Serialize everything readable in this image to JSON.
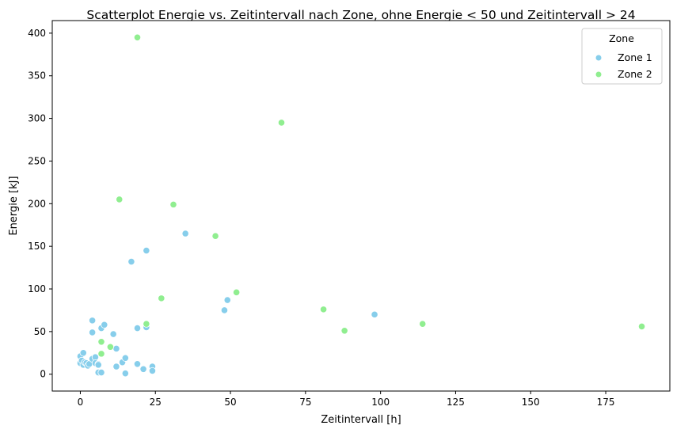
{
  "chart_data": {
    "type": "scatter",
    "title": "Scatterplot Energie vs. Zeitintervall nach Zone, ohne Energie < 50 und Zeitintervall > 24",
    "xlabel": "Zeitintervall [h]",
    "ylabel": "Energie [kJ]",
    "xlim": [
      -9.35,
      196.35
    ],
    "ylim": [
      -19.75,
      414.75
    ],
    "xticks": [
      0,
      25,
      50,
      75,
      100,
      125,
      150,
      175
    ],
    "yticks": [
      0,
      50,
      100,
      150,
      200,
      250,
      300,
      350,
      400
    ],
    "grid": false,
    "legend": {
      "title": "Zone",
      "position": "top-right"
    },
    "series": [
      {
        "name": "Zone 1",
        "color": "#87CEEB",
        "points": [
          [
            0,
            13
          ],
          [
            0,
            21
          ],
          [
            0.5,
            16
          ],
          [
            1,
            11
          ],
          [
            1,
            25
          ],
          [
            1.5,
            14
          ],
          [
            2,
            13
          ],
          [
            2.5,
            10
          ],
          [
            3,
            12
          ],
          [
            4,
            18
          ],
          [
            4,
            63
          ],
          [
            4,
            49
          ],
          [
            5,
            20
          ],
          [
            5,
            13
          ],
          [
            6,
            12
          ],
          [
            6,
            11
          ],
          [
            6,
            2
          ],
          [
            7,
            2
          ],
          [
            7,
            54
          ],
          [
            8,
            58
          ],
          [
            11,
            47
          ],
          [
            12,
            9
          ],
          [
            12,
            30
          ],
          [
            14,
            14
          ],
          [
            15,
            19
          ],
          [
            15,
            1
          ],
          [
            17,
            132
          ],
          [
            19,
            12
          ],
          [
            19,
            54
          ],
          [
            21,
            6
          ],
          [
            22,
            55
          ],
          [
            22,
            145
          ],
          [
            24,
            9
          ],
          [
            24,
            4
          ],
          [
            35,
            165
          ],
          [
            48,
            75
          ],
          [
            49,
            87
          ],
          [
            98,
            70
          ]
        ]
      },
      {
        "name": "Zone 2",
        "color": "#90EE90",
        "points": [
          [
            7,
            38
          ],
          [
            7,
            24
          ],
          [
            10,
            32
          ],
          [
            13,
            205
          ],
          [
            19,
            395
          ],
          [
            22,
            59
          ],
          [
            27,
            89
          ],
          [
            31,
            199
          ],
          [
            45,
            162
          ],
          [
            52,
            96
          ],
          [
            67,
            295
          ],
          [
            81,
            76
          ],
          [
            88,
            51
          ],
          [
            114,
            59
          ],
          [
            187,
            56
          ]
        ]
      }
    ]
  }
}
